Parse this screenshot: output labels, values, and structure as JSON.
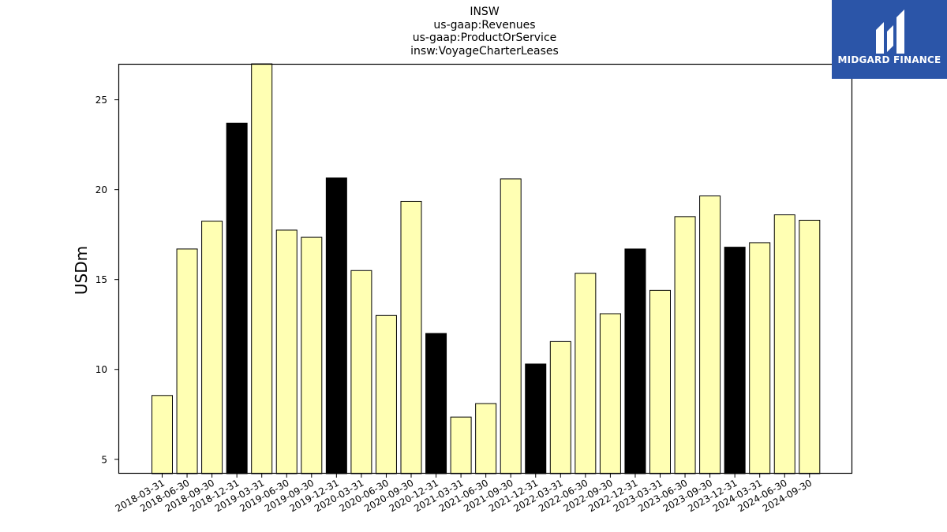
{
  "title_lines": [
    "INSW",
    "us-gaap:Revenues",
    "us-gaap:ProductOrService",
    "insw:VoyageCharterLeases"
  ],
  "logo": {
    "text": "MIDGARD FINANCE",
    "background": "#2b55a8"
  },
  "colors": {
    "bar_default": "#ffffb3",
    "bar_q4": "#000000",
    "edge": "#000000"
  },
  "chart_data": {
    "type": "bar",
    "title": "INSW\nus-gaap:Revenues\nus-gaap:ProductOrService\ninsw:VoyageCharterLeases",
    "xlabel": "",
    "ylabel": "USDm",
    "ylim": [
      4.2,
      27
    ],
    "yticks": [
      5,
      10,
      15,
      20,
      25
    ],
    "grid": false,
    "categories": [
      "2018-03-31",
      "2018-06-30",
      "2018-09-30",
      "2018-12-31",
      "2019-03-31",
      "2019-06-30",
      "2019-09-30",
      "2019-12-31",
      "2020-03-31",
      "2020-06-30",
      "2020-09-30",
      "2020-12-31",
      "2021-03-31",
      "2021-06-30",
      "2021-09-30",
      "2021-12-31",
      "2022-03-31",
      "2022-06-30",
      "2022-09-30",
      "2022-12-31",
      "2023-03-31",
      "2023-06-30",
      "2023-09-30",
      "2023-12-31",
      "2024-03-31",
      "2024-06-30",
      "2024-09-30"
    ],
    "values": [
      8.55,
      16.7,
      18.25,
      23.7,
      27.5,
      17.75,
      17.35,
      20.65,
      15.5,
      13.0,
      19.35,
      12.0,
      7.35,
      8.1,
      20.6,
      10.3,
      11.55,
      15.35,
      13.1,
      16.7,
      14.4,
      18.5,
      19.65,
      16.8,
      17.05,
      18.6,
      18.3
    ],
    "highlight": [
      false,
      false,
      false,
      true,
      false,
      false,
      false,
      true,
      false,
      false,
      false,
      true,
      false,
      false,
      false,
      true,
      false,
      false,
      false,
      true,
      false,
      false,
      false,
      true,
      false,
      false,
      false
    ]
  }
}
